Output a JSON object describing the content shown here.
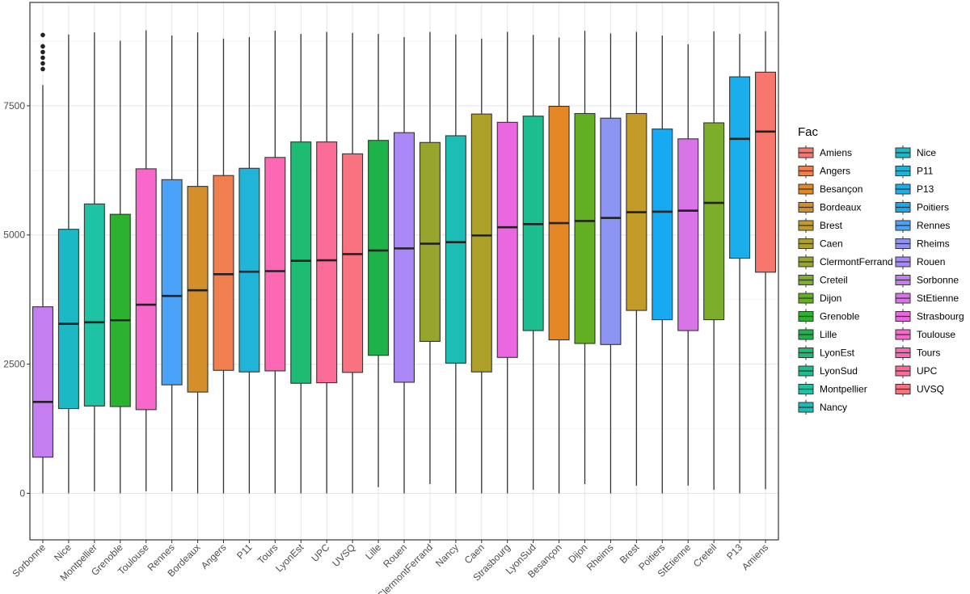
{
  "chart_data": {
    "type": "boxplot",
    "title": "",
    "xlabel": "",
    "ylabel": "",
    "ylim": [
      -900,
      9500
    ],
    "yticks": [
      0,
      2500,
      5000,
      7500
    ],
    "grid": true,
    "legend": {
      "title": "Fac",
      "placement": "right",
      "columns": 2,
      "entries": [
        "Amiens",
        "Angers",
        "Besançon",
        "Bordeaux",
        "Brest",
        "Caen",
        "ClermontFerrand",
        "Creteil",
        "Dijon",
        "Grenoble",
        "Lille",
        "LyonEst",
        "LyonSud",
        "Montpellier",
        "Nancy",
        "Nice",
        "P11",
        "P13",
        "Poitiers",
        "Rennes",
        "Rheims",
        "Rouen",
        "Sorbonne",
        "StEtienne",
        "Strasbourg",
        "Toulouse",
        "Tours",
        "UPC",
        "UVSQ"
      ]
    },
    "colors": {
      "Amiens": "#F8766D",
      "Angers": "#F07E4F",
      "Besançon": "#E58725",
      "Bordeaux": "#D58F2A",
      "Brest": "#C29B28",
      "Caen": "#ADA12A",
      "ClermontFerrand": "#98A52D",
      "Creteil": "#7DAE2B",
      "Dijon": "#62B022",
      "Grenoble": "#2CB22E",
      "Lille": "#1DB348",
      "LyonEst": "#1EBB72",
      "LyonSud": "#1CBD8E",
      "Montpellier": "#1EC3A4",
      "Nancy": "#1BBDB5",
      "Nice": "#1DB8C5",
      "P11": "#1FB4D8",
      "P13": "#1AAFEC",
      "Poitiers": "#18A9F3",
      "Rennes": "#4BA2F9",
      "Rheims": "#8D95F2",
      "Rouen": "#AA88F7",
      "Sorbonne": "#C57EEF",
      "StEtienne": "#D874E7",
      "Strasbourg": "#EB67E0",
      "Toulouse": "#F967CD",
      "Tours": "#FD68B4",
      "UPC": "#FC6C99",
      "UVSQ": "#F9727F"
    },
    "categories": [
      "Sorbonne",
      "Nice",
      "Montpellier",
      "Grenoble",
      "Toulouse",
      "Rennes",
      "Bordeaux",
      "Angers",
      "P11",
      "Tours",
      "LyonEst",
      "UPC",
      "UVSQ",
      "Lille",
      "Rouen",
      "ClermontFerrand",
      "Nancy",
      "Caen",
      "Strasbourg",
      "LyonSud",
      "Besançon",
      "Dijon",
      "Rheims",
      "Brest",
      "Poitiers",
      "StEtienne",
      "Creteil",
      "P13",
      "Amiens"
    ],
    "boxes": [
      {
        "name": "Sorbonne",
        "min": 0,
        "q1": 700,
        "median": 1770,
        "q3": 3610,
        "max": 7900,
        "outliers": [
          8210,
          8320,
          8430,
          8540,
          8650,
          8870
        ]
      },
      {
        "name": "Nice",
        "min": 0,
        "q1": 1640,
        "median": 3280,
        "q3": 5110,
        "max": 8880,
        "outliers": []
      },
      {
        "name": "Montpellier",
        "min": 40,
        "q1": 1690,
        "median": 3310,
        "q3": 5600,
        "max": 8920,
        "outliers": []
      },
      {
        "name": "Grenoble",
        "min": 0,
        "q1": 1680,
        "median": 3350,
        "q3": 5400,
        "max": 8760,
        "outliers": []
      },
      {
        "name": "Toulouse",
        "min": 40,
        "q1": 1620,
        "median": 3650,
        "q3": 6280,
        "max": 8960,
        "outliers": []
      },
      {
        "name": "Rennes",
        "min": 40,
        "q1": 2100,
        "median": 3820,
        "q3": 6070,
        "max": 8860,
        "outliers": []
      },
      {
        "name": "Bordeaux",
        "min": 0,
        "q1": 1960,
        "median": 3930,
        "q3": 5940,
        "max": 8920,
        "outliers": []
      },
      {
        "name": "Angers",
        "min": 0,
        "q1": 2380,
        "median": 4240,
        "q3": 6150,
        "max": 8800,
        "outliers": []
      },
      {
        "name": "P11",
        "min": 0,
        "q1": 2350,
        "median": 4290,
        "q3": 6290,
        "max": 8830,
        "outliers": []
      },
      {
        "name": "Tours",
        "min": 0,
        "q1": 2370,
        "median": 4300,
        "q3": 6500,
        "max": 8950,
        "outliers": []
      },
      {
        "name": "LyonEst",
        "min": 0,
        "q1": 2130,
        "median": 4500,
        "q3": 6800,
        "max": 8890,
        "outliers": []
      },
      {
        "name": "UPC",
        "min": 0,
        "q1": 2140,
        "median": 4510,
        "q3": 6800,
        "max": 8930,
        "outliers": []
      },
      {
        "name": "UVSQ",
        "min": 0,
        "q1": 2340,
        "median": 4630,
        "q3": 6570,
        "max": 8910,
        "outliers": []
      },
      {
        "name": "Lille",
        "min": 120,
        "q1": 2670,
        "median": 4700,
        "q3": 6830,
        "max": 8890,
        "outliers": []
      },
      {
        "name": "Rouen",
        "min": 0,
        "q1": 2150,
        "median": 4740,
        "q3": 6980,
        "max": 8830,
        "outliers": []
      },
      {
        "name": "ClermontFerrand",
        "min": 180,
        "q1": 2940,
        "median": 4830,
        "q3": 6790,
        "max": 8930,
        "outliers": []
      },
      {
        "name": "Nancy",
        "min": 0,
        "q1": 2520,
        "median": 4860,
        "q3": 6920,
        "max": 8880,
        "outliers": []
      },
      {
        "name": "Caen",
        "min": 0,
        "q1": 2350,
        "median": 4990,
        "q3": 7340,
        "max": 8800,
        "outliers": []
      },
      {
        "name": "Strasbourg",
        "min": 0,
        "q1": 2630,
        "median": 5150,
        "q3": 7180,
        "max": 8930,
        "outliers": []
      },
      {
        "name": "LyonSud",
        "min": 70,
        "q1": 3150,
        "median": 5210,
        "q3": 7300,
        "max": 8870,
        "outliers": []
      },
      {
        "name": "Besançon",
        "min": 0,
        "q1": 2970,
        "median": 5230,
        "q3": 7490,
        "max": 8820,
        "outliers": []
      },
      {
        "name": "Dijon",
        "min": 180,
        "q1": 2900,
        "median": 5270,
        "q3": 7350,
        "max": 8950,
        "outliers": []
      },
      {
        "name": "Rheims",
        "min": 0,
        "q1": 2880,
        "median": 5330,
        "q3": 7260,
        "max": 8900,
        "outliers": []
      },
      {
        "name": "Brest",
        "min": 150,
        "q1": 3540,
        "median": 5440,
        "q3": 7350,
        "max": 8930,
        "outliers": []
      },
      {
        "name": "Poitiers",
        "min": 0,
        "q1": 3360,
        "median": 5450,
        "q3": 7050,
        "max": 8860,
        "outliers": []
      },
      {
        "name": "StEtienne",
        "min": 150,
        "q1": 3150,
        "median": 5470,
        "q3": 6860,
        "max": 8690,
        "outliers": []
      },
      {
        "name": "Creteil",
        "min": 70,
        "q1": 3360,
        "median": 5620,
        "q3": 7170,
        "max": 8940,
        "outliers": []
      },
      {
        "name": "P13",
        "min": 0,
        "q1": 4550,
        "median": 6860,
        "q3": 8060,
        "max": 8890,
        "outliers": []
      },
      {
        "name": "Amiens",
        "min": 80,
        "q1": 4280,
        "median": 7000,
        "q3": 8150,
        "max": 8940,
        "outliers": []
      }
    ]
  }
}
